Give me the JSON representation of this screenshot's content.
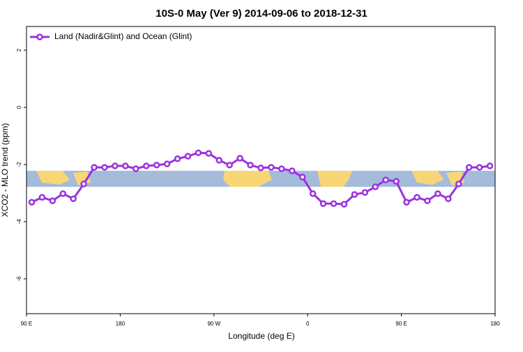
{
  "chart_data": {
    "type": "line",
    "title": "10S-0 May (Ver 9)   2014-09-06 to 2018-12-31",
    "x_label": "Longitude (deg E)",
    "y_label": "XCO2 - MLO trend (ppm)",
    "x": [
      95,
      105,
      115,
      125,
      135,
      145,
      155,
      165,
      175,
      185,
      195,
      205,
      215,
      225,
      235,
      245,
      255,
      265,
      275,
      285,
      295,
      305,
      315,
      325,
      335,
      345,
      355,
      365,
      375,
      385,
      395,
      405,
      415,
      425,
      435,
      445,
      455,
      465,
      475,
      485,
      495,
      505,
      515,
      525,
      535
    ],
    "series": [
      {
        "name": "Land (Nadir&Glint) and Ocean (Glint)",
        "color": "#9b30e0",
        "values": [
          -3.32,
          -3.15,
          -3.27,
          -3.02,
          -3.2,
          -2.68,
          -2.1,
          -2.1,
          -2.05,
          -2.05,
          -2.15,
          -2.05,
          -2.02,
          -1.98,
          -1.8,
          -1.71,
          -1.59,
          -1.61,
          -1.85,
          -2.02,
          -1.78,
          -2.02,
          -2.12,
          -2.1,
          -2.15,
          -2.22,
          -2.44,
          -3.02,
          -3.37,
          -3.37,
          -3.39,
          -3.05,
          -2.98,
          -2.78,
          -2.54,
          -2.59,
          -3.32,
          -3.15,
          -3.27,
          -3.02,
          -3.2,
          -2.68,
          -2.1,
          -2.1,
          -2.05
        ]
      }
    ],
    "xlim": [
      90,
      540
    ],
    "xticks": [
      {
        "value": 90,
        "label": "90 E"
      },
      {
        "value": 180,
        "label": "180"
      },
      {
        "value": 270,
        "label": "90 W"
      },
      {
        "value": 360,
        "label": "0"
      },
      {
        "value": 450,
        "label": "90 E"
      },
      {
        "value": 540,
        "label": "180"
      }
    ],
    "ylim": [
      -7.22,
      2.83
    ],
    "yticks": [
      2,
      0,
      -2,
      -4,
      -6
    ],
    "legend": "top-left"
  }
}
